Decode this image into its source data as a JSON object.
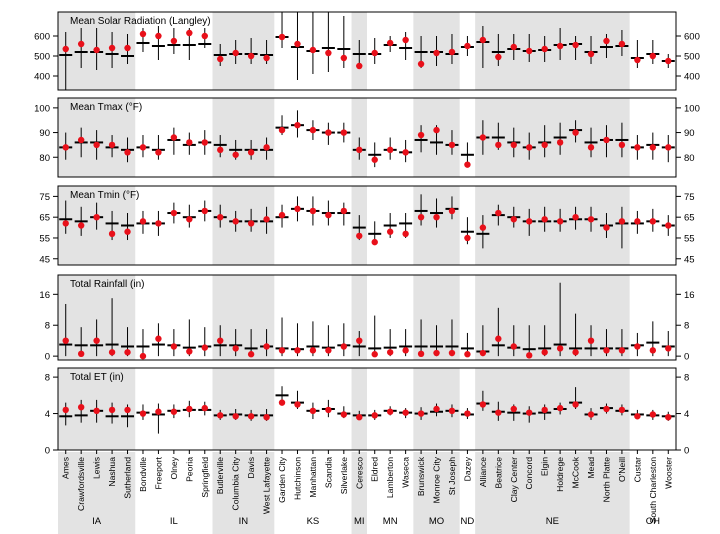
{
  "chart_data": {
    "type": "panel-dot-range",
    "title": "",
    "xlabel": "",
    "ylabel": "",
    "legend": [],
    "sites": [
      "Ames",
      "Crawfordsville",
      "Lewis",
      "Nashua",
      "Sutherland",
      "Bondville",
      "Freeport",
      "Olney",
      "Peoria",
      "Springfield",
      "Butlerville",
      "Columbia City",
      "Davis",
      "West Lafayette",
      "Garden City",
      "Hutchinson",
      "Manhattan",
      "Scandia",
      "Silverlake",
      "Ceresco",
      "Eldred",
      "Lamberton",
      "Waseca",
      "Brunswick",
      "Monroe City",
      "St Joseph",
      "Dazey",
      "Alliance",
      "Beatrice",
      "Clay Center",
      "Concord",
      "Elgin",
      "Holdrege",
      "McCook",
      "Mead",
      "North Platte",
      "O'Neill",
      "Custar",
      "South Charleston",
      "Wooster"
    ],
    "states": [
      {
        "name": "IA",
        "start": 0,
        "end": 4,
        "shaded": true
      },
      {
        "name": "IL",
        "start": 5,
        "end": 9,
        "shaded": false
      },
      {
        "name": "IN",
        "start": 10,
        "end": 13,
        "shaded": true
      },
      {
        "name": "KS",
        "start": 14,
        "end": 18,
        "shaded": false
      },
      {
        "name": "MI",
        "start": 19,
        "end": 19,
        "shaded": true
      },
      {
        "name": "MN",
        "start": 20,
        "end": 22,
        "shaded": false
      },
      {
        "name": "MO",
        "start": 23,
        "end": 25,
        "shaded": true
      },
      {
        "name": "ND",
        "start": 26,
        "end": 26,
        "shaded": false
      },
      {
        "name": "NE",
        "start": 27,
        "end": 36,
        "shaded": true
      },
      {
        "name": "OH",
        "start": 37,
        "end": 39,
        "shaded": false
      }
    ],
    "panels": [
      {
        "title": "Mean Solar Radiation (Langley)",
        "ylim": [
          330,
          720
        ],
        "ticks": [
          400,
          500,
          600
        ],
        "model": [
          505,
          520,
          520,
          510,
          500,
          565,
          550,
          555,
          555,
          560,
          505,
          510,
          510,
          505,
          595,
          545,
          525,
          540,
          535,
          510,
          510,
          555,
          540,
          520,
          520,
          510,
          545,
          570,
          520,
          535,
          525,
          530,
          555,
          560,
          520,
          545,
          550,
          490,
          510,
          475
        ],
        "obs": [
          535,
          560,
          530,
          540,
          540,
          610,
          600,
          575,
          615,
          600,
          485,
          515,
          500,
          490,
          595,
          560,
          530,
          515,
          490,
          450,
          515,
          565,
          580,
          460,
          515,
          520,
          550,
          580,
          495,
          545,
          525,
          535,
          550,
          555,
          510,
          575,
          560,
          480,
          500,
          475
        ],
        "lo": [
          330,
          440,
          430,
          440,
          460,
          520,
          480,
          510,
          480,
          540,
          450,
          460,
          460,
          460,
          540,
          380,
          410,
          420,
          440,
          460,
          460,
          520,
          480,
          440,
          450,
          460,
          500,
          440,
          450,
          480,
          470,
          470,
          480,
          480,
          460,
          490,
          500,
          440,
          460,
          440
        ],
        "hi": [
          620,
          640,
          640,
          620,
          610,
          640,
          650,
          640,
          640,
          640,
          560,
          580,
          590,
          580,
          720,
          750,
          720,
          740,
          700,
          580,
          590,
          600,
          620,
          600,
          600,
          610,
          600,
          650,
          610,
          610,
          610,
          600,
          640,
          600,
          600,
          610,
          630,
          580,
          580,
          510
        ]
      },
      {
        "title": "Mean Tmax (°F)",
        "ylim": [
          72,
          104
        ],
        "ticks": [
          80,
          90,
          100
        ],
        "model": [
          84,
          86,
          86,
          84,
          83,
          84,
          83,
          87,
          85,
          86,
          85,
          83,
          83,
          83,
          92,
          93,
          91,
          90,
          90,
          83,
          81,
          83,
          82,
          87,
          86,
          85,
          81,
          88,
          88,
          86,
          84,
          86,
          88,
          91,
          86,
          87,
          87,
          84,
          85,
          84
        ],
        "obs": [
          84,
          87,
          85,
          85,
          82,
          84,
          82,
          88,
          86,
          86,
          83,
          81,
          82,
          84,
          91,
          93,
          91,
          90,
          90,
          83,
          79,
          83,
          82,
          89,
          91,
          85,
          77,
          88,
          85,
          85,
          84,
          85,
          86,
          90,
          84,
          87,
          85,
          84,
          84,
          84
        ],
        "lo": [
          79,
          80,
          79,
          80,
          78,
          80,
          79,
          81,
          81,
          81,
          80,
          79,
          79,
          79,
          89,
          88,
          87,
          85,
          86,
          79,
          76,
          79,
          78,
          82,
          81,
          81,
          77,
          81,
          83,
          80,
          79,
          80,
          81,
          86,
          80,
          80,
          80,
          79,
          79,
          78
        ],
        "hi": [
          90,
          92,
          91,
          89,
          88,
          89,
          89,
          92,
          90,
          91,
          89,
          87,
          87,
          88,
          97,
          99,
          95,
          94,
          94,
          88,
          86,
          88,
          87,
          93,
          93,
          91,
          86,
          95,
          94,
          92,
          90,
          93,
          94,
          95,
          92,
          93,
          94,
          89,
          90,
          89
        ]
      },
      {
        "title": "Mean Tmin (°F)",
        "ylim": [
          42,
          80
        ],
        "ticks": [
          45,
          55,
          65,
          75
        ],
        "model": [
          64,
          63,
          65,
          62,
          61,
          62,
          62,
          67,
          65,
          68,
          65,
          63,
          63,
          63,
          65,
          69,
          68,
          67,
          67,
          60,
          57,
          61,
          62,
          68,
          67,
          69,
          58,
          57,
          66,
          65,
          63,
          63,
          63,
          64,
          64,
          61,
          62,
          62,
          63,
          61
        ],
        "obs": [
          62,
          61,
          65,
          57,
          58,
          63,
          62,
          67,
          64,
          68,
          65,
          63,
          62,
          64,
          66,
          69,
          68,
          66,
          68,
          56,
          53,
          58,
          57,
          65,
          65,
          68,
          55,
          60,
          67,
          64,
          63,
          64,
          63,
          65,
          64,
          60,
          63,
          63,
          63,
          61
        ],
        "lo": [
          57,
          56,
          59,
          54,
          54,
          57,
          56,
          62,
          60,
          63,
          60,
          58,
          58,
          57,
          60,
          63,
          61,
          61,
          61,
          54,
          52,
          55,
          55,
          61,
          60,
          64,
          52,
          50,
          61,
          60,
          56,
          58,
          58,
          59,
          58,
          55,
          50,
          57,
          58,
          56
        ],
        "hi": [
          73,
          70,
          72,
          68,
          67,
          68,
          68,
          72,
          71,
          73,
          71,
          68,
          69,
          70,
          71,
          75,
          75,
          73,
          72,
          66,
          63,
          67,
          67,
          76,
          74,
          75,
          65,
          66,
          71,
          70,
          69,
          70,
          69,
          70,
          70,
          67,
          70,
          68,
          69,
          66
        ]
      },
      {
        "title": "Total Rainfall (in)",
        "ylim": [
          -1,
          21
        ],
        "ticks": [
          0,
          8,
          16
        ],
        "model": [
          3,
          2.8,
          2.8,
          3,
          2.5,
          2.5,
          3,
          2.8,
          2.2,
          2.5,
          2.8,
          2.8,
          2,
          2.5,
          2,
          1.8,
          2.5,
          2.2,
          2.8,
          2.5,
          2,
          2.2,
          2.5,
          2.5,
          2.5,
          2.5,
          2,
          1.2,
          2.8,
          2.2,
          1.8,
          2,
          3,
          2,
          2,
          2,
          2,
          2.8,
          3.5,
          2.5
        ],
        "obs": [
          4,
          0.6,
          4,
          1,
          1,
          0,
          4.5,
          2.5,
          1.2,
          2.2,
          4,
          2,
          0.5,
          2.5,
          1.5,
          1.5,
          1.5,
          1.5,
          2.5,
          4,
          0.5,
          1,
          1.5,
          0.6,
          0.8,
          0.8,
          0.5,
          0.8,
          4.5,
          2.5,
          0.2,
          1,
          2,
          1,
          4,
          1.5,
          1.5,
          2.5,
          1.5,
          2
        ],
        "lo": [
          0,
          0,
          0,
          0,
          0,
          0,
          0,
          0,
          0,
          0,
          0,
          0,
          0,
          0,
          0,
          0,
          0,
          0,
          0,
          0,
          0,
          0,
          0,
          0,
          0,
          0,
          0,
          0,
          0,
          0,
          0,
          0,
          0,
          0,
          0,
          0,
          0,
          0,
          0,
          0
        ],
        "hi": [
          13.5,
          7.5,
          9.5,
          15,
          7.5,
          7,
          8.5,
          7,
          9.5,
          7.5,
          8,
          7,
          7,
          7,
          10,
          8.5,
          9,
          8,
          8.5,
          6.5,
          10.5,
          7,
          7,
          9.5,
          8,
          9.5,
          6,
          8,
          12.5,
          8,
          8,
          8,
          19,
          11,
          8,
          7,
          7,
          6,
          9,
          6.5
        ]
      },
      {
        "title": "Total ET (in)",
        "ylim": [
          0,
          9
        ],
        "ticks": [
          0,
          4,
          8
        ],
        "model": [
          3.7,
          3.8,
          4.3,
          3.7,
          3.7,
          4.1,
          3.9,
          4.3,
          4.4,
          4.4,
          3.8,
          3.9,
          3.8,
          3.8,
          6,
          5.2,
          4.3,
          4.5,
          4,
          3.8,
          3.8,
          4.3,
          4.1,
          4,
          4.2,
          4.3,
          3.9,
          5.1,
          4.2,
          4.1,
          4,
          4.1,
          4.5,
          5.2,
          3.9,
          4.6,
          4.3,
          3.9,
          3.8,
          3.7
        ],
        "obs": [
          4.4,
          4.7,
          4.3,
          4.4,
          4.4,
          4,
          4.2,
          4.2,
          4.5,
          4.6,
          3.8,
          3.7,
          3.7,
          3.6,
          5.2,
          5,
          4.3,
          4.4,
          3.9,
          3.6,
          3.8,
          4.2,
          4.1,
          4,
          4.5,
          4.3,
          4,
          5,
          4.1,
          4.5,
          4.1,
          4.4,
          4.6,
          5,
          3.9,
          4.5,
          4.4,
          3.7,
          3.9,
          3.6
        ],
        "lo": [
          2.7,
          3,
          3,
          2.9,
          2.5,
          3.3,
          1.8,
          3.5,
          3.6,
          3.8,
          3.3,
          3.3,
          3.2,
          3.2,
          5,
          4.5,
          3.4,
          3.6,
          3.5,
          3.3,
          3.3,
          3.8,
          3.5,
          3.3,
          3.7,
          3.6,
          3.4,
          4.3,
          3.2,
          3.2,
          3,
          3.3,
          3.9,
          4.5,
          3.3,
          4,
          3.8,
          3.4,
          3.3,
          3.2
        ],
        "hi": [
          5.2,
          5.5,
          5.5,
          5.2,
          5,
          5,
          5.1,
          5,
          5.4,
          5.3,
          4.4,
          4.5,
          4.4,
          4.5,
          7,
          6.5,
          5.2,
          5.5,
          4.8,
          4.3,
          4.4,
          4.8,
          4.6,
          4.7,
          5.1,
          5,
          4.6,
          6.5,
          5.3,
          5,
          4.8,
          5,
          5.2,
          6.9,
          4.6,
          5.1,
          5,
          4.4,
          4.4,
          4.2
        ]
      }
    ]
  }
}
